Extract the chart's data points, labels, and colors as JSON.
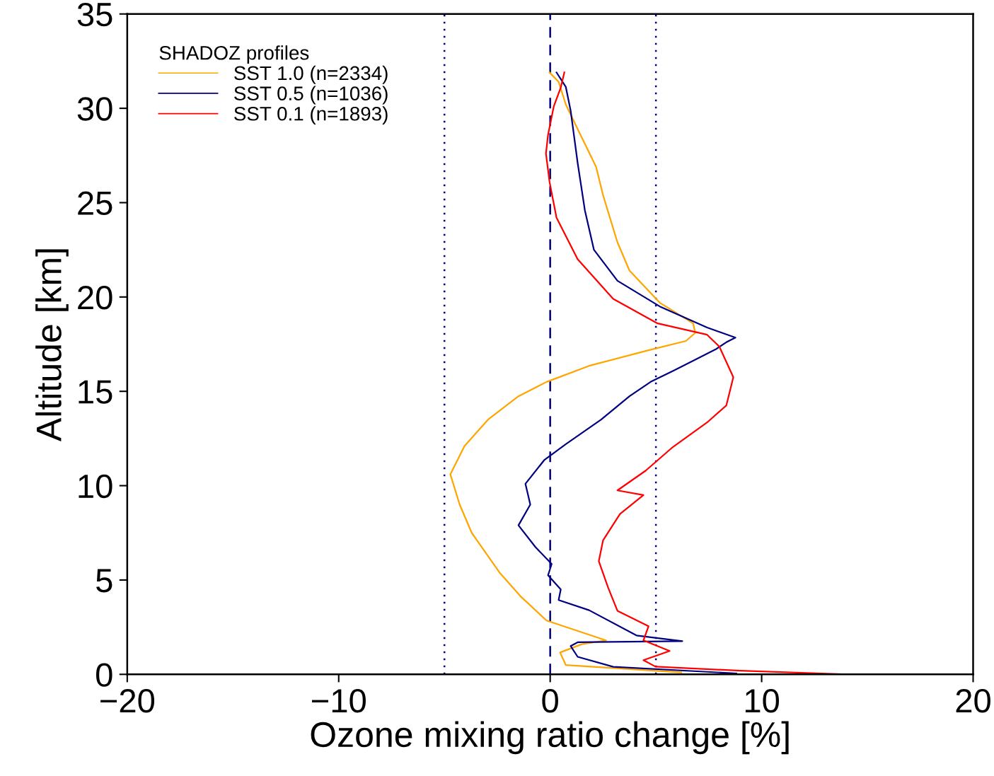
{
  "chart_data": {
    "type": "line",
    "xlabel": "Ozone mixing ratio change [%]",
    "ylabel": "Altitude [km]",
    "legend_title": "SHADOZ profiles",
    "legend": "top left",
    "grid": false,
    "marker": "none",
    "line_style": "solid",
    "xlim": [
      -20,
      20
    ],
    "ylim": [
      0,
      35
    ],
    "xticks": [
      {
        "value": -20,
        "label": "−20"
      },
      {
        "value": -10,
        "label": "−10"
      },
      0,
      10,
      20
    ],
    "yticks": [
      0,
      5,
      10,
      15,
      20,
      25,
      30,
      35
    ],
    "ref_lines": [
      {
        "axis": "x",
        "value": 0,
        "label": null,
        "color": "#000080",
        "line_style": "dashed"
      },
      {
        "axis": "x",
        "value": -5,
        "label": null,
        "color": "#000080",
        "line_style": "dotted"
      },
      {
        "axis": "x",
        "value": 5,
        "label": null,
        "color": "#000080",
        "line_style": "dotted"
      }
    ],
    "series": [
      {
        "name": "SST 1.0 (n=2334)",
        "color": "#ffa500",
        "x": [
          6.2,
          0.74,
          0.47,
          1.5,
          2.64,
          -0.17,
          -1.37,
          -2.37,
          -3.71,
          -4.28,
          -4.72,
          -4.05,
          -2.94,
          -1.5,
          -0.17,
          1.84,
          4.65,
          6.42,
          6.86,
          6.76,
          5.18,
          3.75,
          3.18,
          2.5,
          2.17,
          1.3,
          0.74,
          0.4,
          -0.03
        ],
        "values": [
          0.1,
          0.49,
          1.16,
          1.6,
          1.8,
          2.85,
          4.1,
          5.36,
          7.5,
          9.0,
          10.6,
          12.1,
          13.5,
          14.74,
          15.5,
          16.35,
          17.18,
          17.67,
          18.1,
          18.6,
          19.7,
          21.4,
          22.9,
          25.4,
          26.9,
          28.9,
          30.2,
          31.4,
          31.9
        ]
      },
      {
        "name": "SST 0.5 (n=1036)",
        "color": "#000080",
        "x": [
          8.8,
          2.98,
          1.3,
          0.97,
          1.3,
          6.25,
          4.08,
          1.84,
          0.4,
          0.5,
          -0.1,
          0.07,
          -0.7,
          -1.5,
          -0.94,
          -1.17,
          -0.27,
          0.74,
          2.41,
          3.75,
          4.75,
          5.85,
          7.86,
          8.33,
          8.76,
          7.42,
          5.18,
          3.18,
          2.07,
          1.64,
          1.3,
          0.97,
          0.74,
          0.3
        ],
        "values": [
          0.05,
          0.4,
          0.93,
          1.5,
          1.7,
          1.76,
          2.06,
          3.4,
          3.94,
          4.5,
          5.25,
          5.85,
          6.75,
          7.9,
          9.0,
          10.1,
          11.37,
          12.2,
          13.5,
          14.74,
          15.5,
          16.1,
          17.25,
          17.6,
          17.85,
          18.38,
          19.5,
          20.86,
          22.5,
          24.6,
          27.1,
          29.86,
          31.13,
          31.9
        ]
      },
      {
        "name": "SST 0.1 (n=1893)",
        "color": "#ff0000",
        "x": [
          14.0,
          9.0,
          4.98,
          4.41,
          5.65,
          4.41,
          4.65,
          3.18,
          2.74,
          2.3,
          2.5,
          3.3,
          4.41,
          3.18,
          4.52,
          5.75,
          7.42,
          8.33,
          8.66,
          8.0,
          7.42,
          5.08,
          2.98,
          1.3,
          0.3,
          -0.03,
          -0.2,
          -0.1,
          0.17,
          0.5,
          0.67
        ],
        "values": [
          0.0,
          0.19,
          0.41,
          0.75,
          1.24,
          1.8,
          2.55,
          3.37,
          4.6,
          6.0,
          7.1,
          8.5,
          9.5,
          9.75,
          10.8,
          12.0,
          13.35,
          14.25,
          15.75,
          17.37,
          18.0,
          18.6,
          19.9,
          22.0,
          24.2,
          26.1,
          27.6,
          28.6,
          30.1,
          31.1,
          31.9
        ]
      }
    ]
  }
}
